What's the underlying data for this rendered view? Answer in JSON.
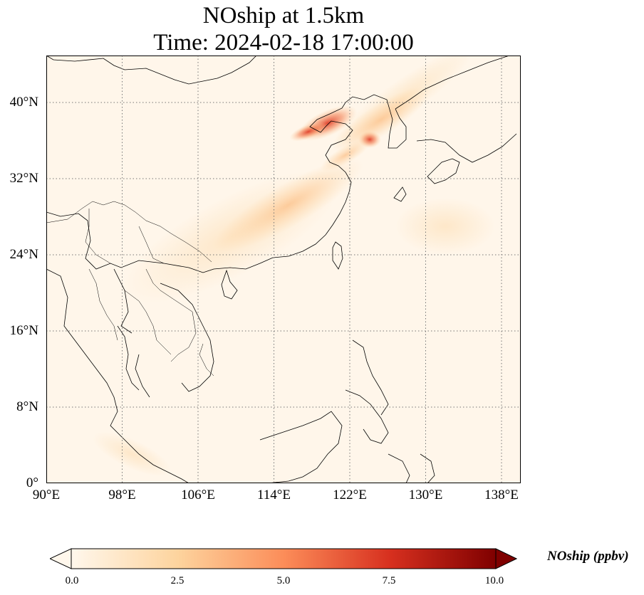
{
  "title": {
    "line1": "NOship at 1.5km",
    "line2": "Time: 2024-02-18 17:00:00"
  },
  "map": {
    "lon_range": [
      90,
      139
    ],
    "lat_range": [
      0,
      45
    ],
    "gridlines": "dotted",
    "colormap": [
      "#fff7ec",
      "#fdd49e",
      "#fc8d59",
      "#d7301f",
      "#7f0000"
    ],
    "x_ticks": [
      "90°E",
      "98°E",
      "106°E",
      "114°E",
      "122°E",
      "130°E",
      "138°E"
    ],
    "y_ticks": [
      "0°",
      "8°N",
      "16°N",
      "24°N",
      "32°N",
      "40°N"
    ]
  },
  "colorbar": {
    "label": "NOship (ppbv)",
    "min": 0.0,
    "max": 10.0,
    "extend": "both",
    "ticks": [
      "0.0",
      "2.5",
      "5.0",
      "7.5",
      "10.0"
    ]
  }
}
